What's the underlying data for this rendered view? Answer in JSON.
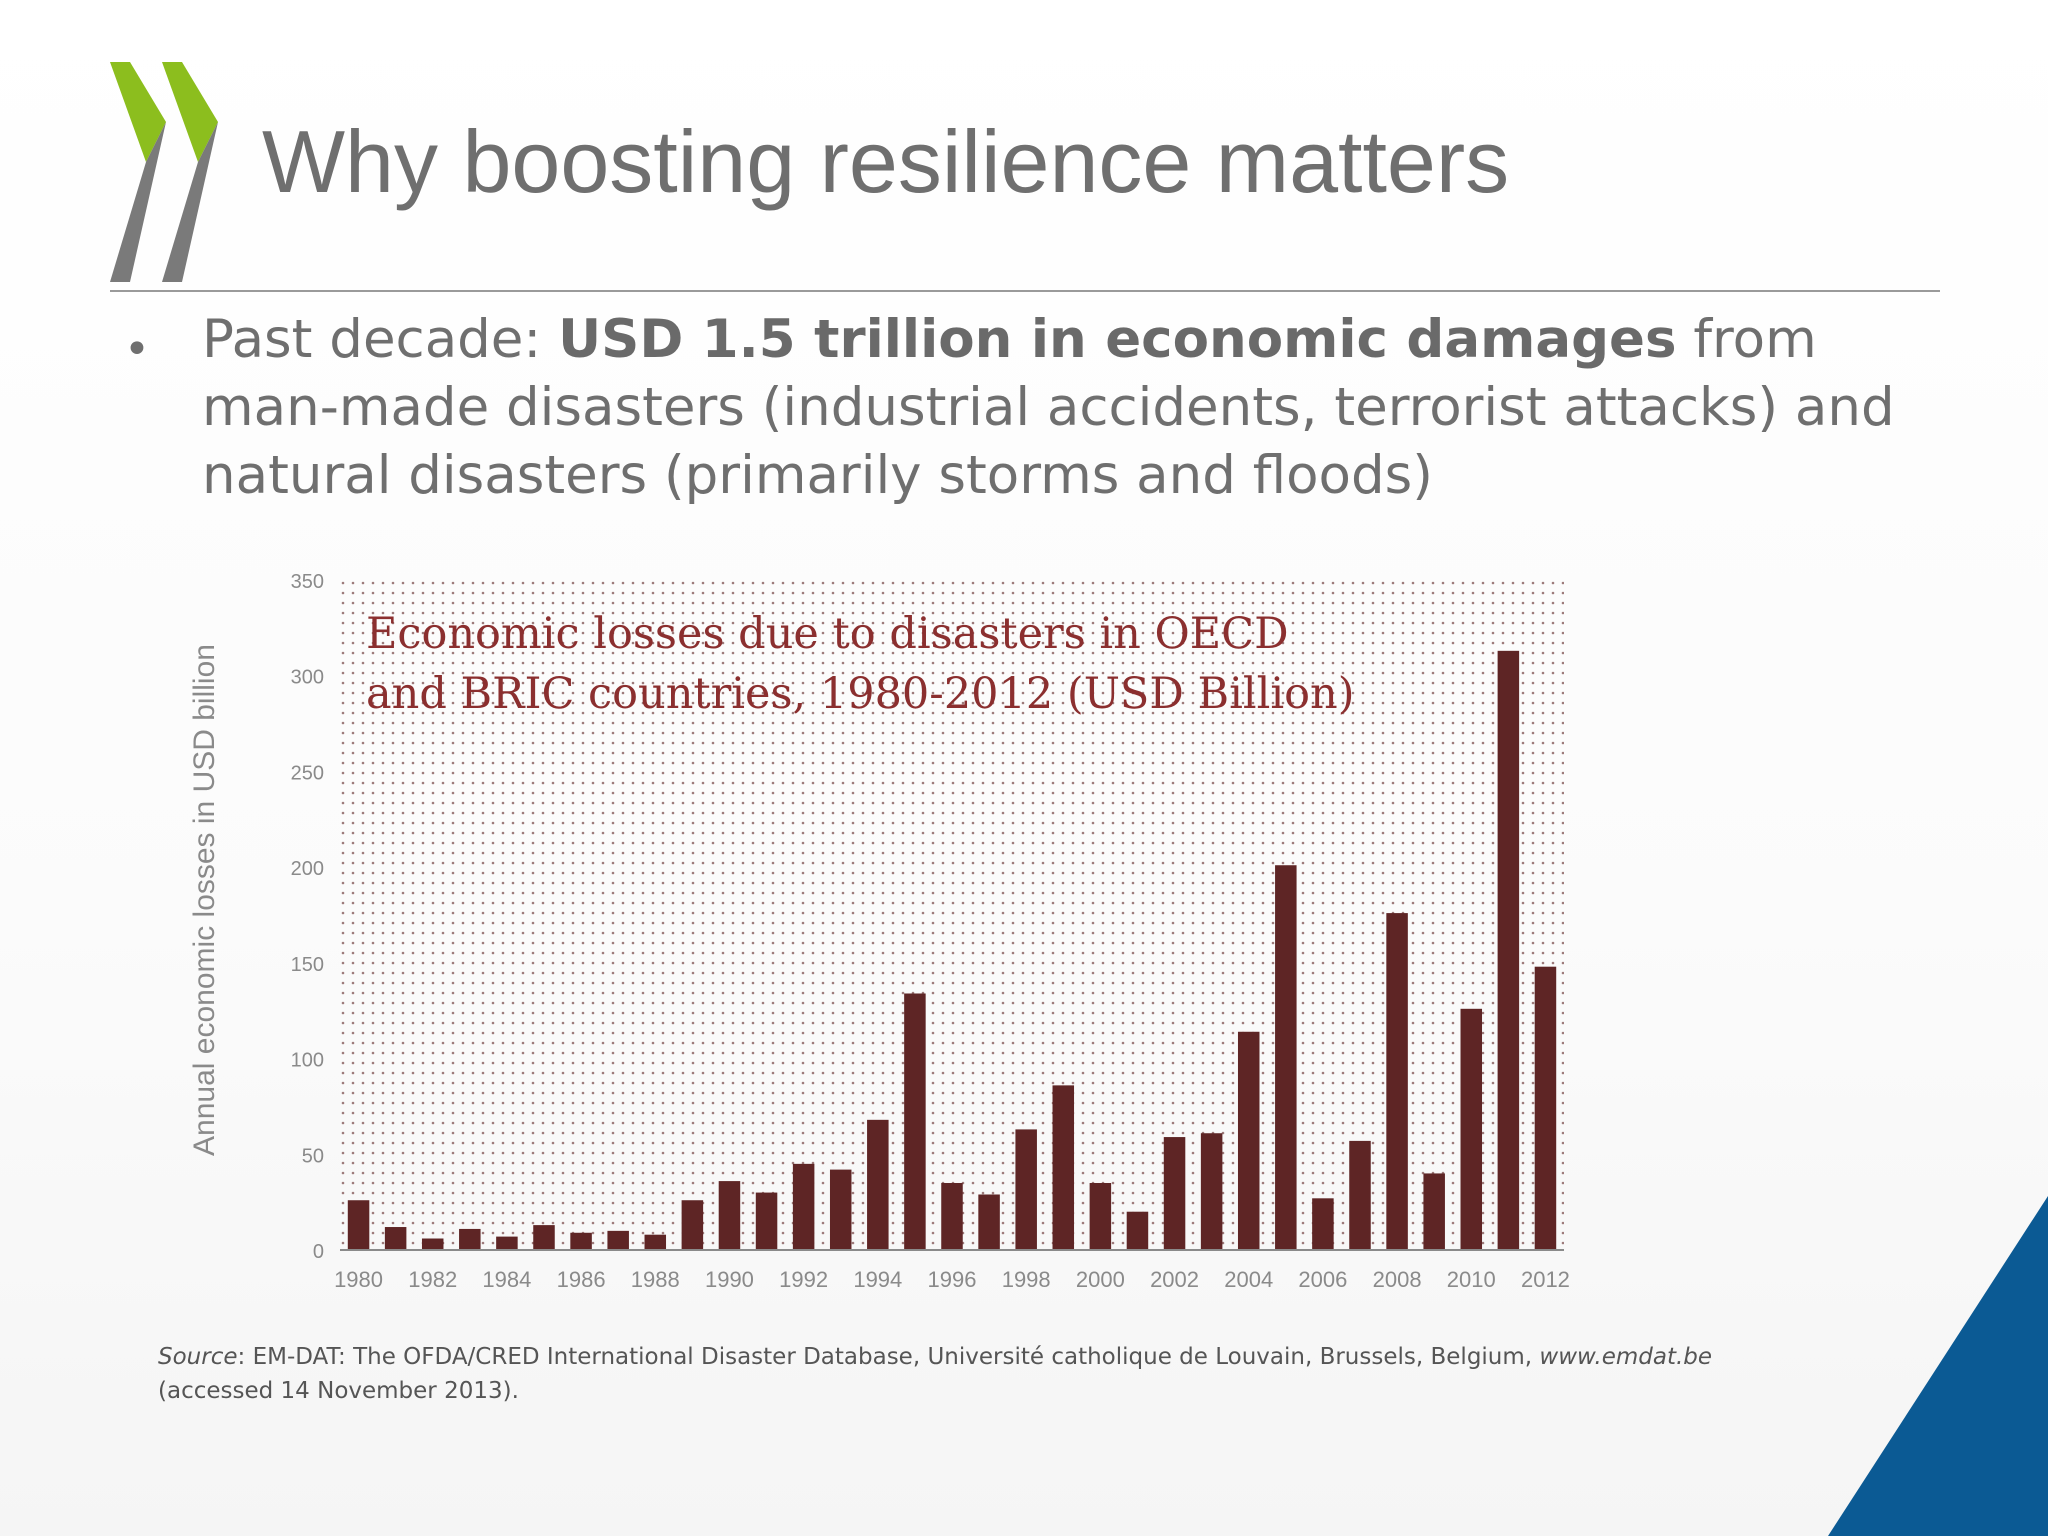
{
  "slide": {
    "title": "Why boosting resilience matters",
    "bullet": {
      "prefix": "Past decade: ",
      "bold": "USD 1.5 trillion in economic damages",
      "suffix": " from man-made disasters (industrial accidents, terrorist attacks) and natural disasters (primarily storms and floods)"
    },
    "source": {
      "label": "Source",
      "text": ": EM-DAT: The OFDA/CRED International Disaster Database, Université catholique de Louvain, Brussels, Belgium, ",
      "link": "www.emdat.be",
      "tail": " (accessed 14 November 2013)."
    }
  },
  "colors": {
    "bar": "#5e2525",
    "title_text": "#8b2f2f",
    "brand_green": "#8cbe1e",
    "brand_grey": "#7a7a7a",
    "corner_blue": "#0b5a94"
  },
  "chart_data": {
    "type": "bar",
    "title": "Economic losses due to disasters in OECD and BRIC countries, 1980-2012 (USD Billion)",
    "title_lines": [
      "Economic losses due to disasters in OECD",
      "and BRIC countries, 1980-2012 (USD Billion)"
    ],
    "ylabel": "Annual economic losses in USD billion",
    "xlabel": "",
    "ylim": [
      0,
      350
    ],
    "yticks": [
      0,
      50,
      100,
      150,
      200,
      250,
      300,
      350
    ],
    "grid": "dotted background",
    "categories": [
      "1980",
      "1981",
      "1982",
      "1983",
      "1984",
      "1985",
      "1986",
      "1987",
      "1988",
      "1989",
      "1990",
      "1991",
      "1992",
      "1993",
      "1994",
      "1995",
      "1996",
      "1997",
      "1998",
      "1999",
      "2000",
      "2001",
      "2002",
      "2003",
      "2004",
      "2005",
      "2006",
      "2007",
      "2008",
      "2009",
      "2010",
      "2011",
      "2012"
    ],
    "xtick_labels": [
      "1980",
      "1982",
      "1984",
      "1986",
      "1988",
      "1990",
      "1992",
      "1994",
      "1996",
      "1998",
      "2000",
      "2002",
      "2004",
      "2006",
      "2008",
      "2010",
      "2012"
    ],
    "series": [
      {
        "values": [
          26,
          12,
          6,
          11,
          7,
          13,
          9,
          10,
          8,
          26,
          36,
          30,
          45,
          42,
          68,
          134,
          35,
          29,
          63,
          86,
          35,
          20,
          59,
          61,
          114,
          201,
          27,
          57,
          176,
          40,
          126,
          313,
          148
        ]
      }
    ]
  }
}
